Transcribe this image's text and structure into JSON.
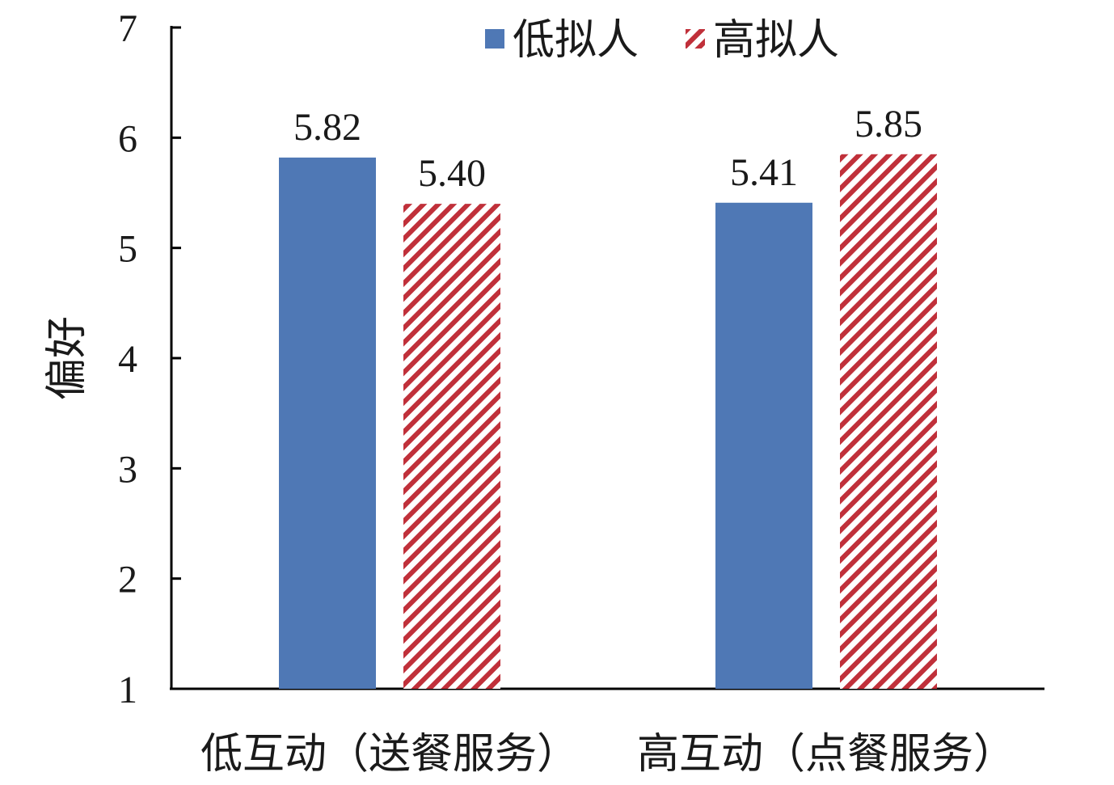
{
  "chart_data": {
    "type": "bar",
    "title": "",
    "xlabel": "",
    "ylabel": "偏好",
    "ylim": [
      1,
      7
    ],
    "yticks": [
      1,
      2,
      3,
      4,
      5,
      6,
      7
    ],
    "grid": false,
    "legend_position": "top-right",
    "categories": [
      "低互动（送餐服务）",
      "高互动（点餐服务）"
    ],
    "series": [
      {
        "name": "低拟人",
        "values": [
          5.82,
          5.41
        ],
        "labels": [
          "5.82",
          "5.41"
        ],
        "color": "#4f78b5",
        "pattern": "solid"
      },
      {
        "name": "高拟人",
        "values": [
          5.4,
          5.85
        ],
        "labels": [
          "5.40",
          "5.85"
        ],
        "color": "#c0303a",
        "pattern": "diagonal-stripes"
      }
    ]
  }
}
